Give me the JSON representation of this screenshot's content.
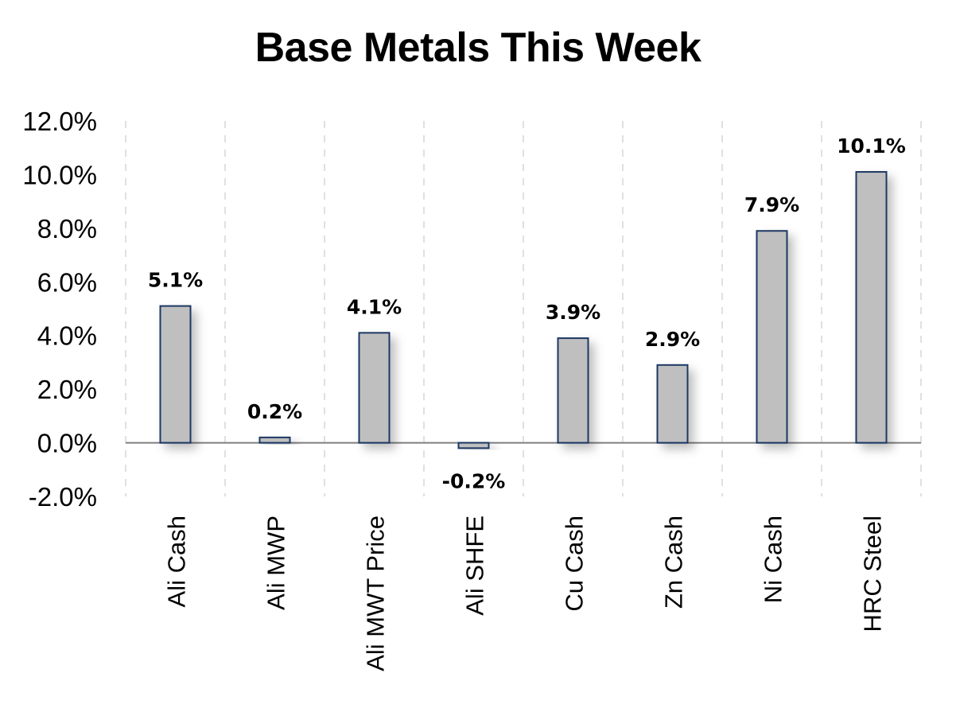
{
  "chart_data": {
    "type": "bar",
    "title": "Base Metals This Week",
    "categories": [
      "Ali Cash",
      "Ali MWP",
      "Ali MWT Price",
      "Ali SHFE",
      "Cu Cash",
      "Zn Cash",
      "Ni Cash",
      "HRC Steel"
    ],
    "values": [
      5.1,
      0.2,
      4.1,
      -0.2,
      3.9,
      2.9,
      7.9,
      10.1
    ],
    "data_labels": [
      "5.1%",
      "0.2%",
      "4.1%",
      "-0.2%",
      "3.9%",
      "2.9%",
      "7.9%",
      "10.1%"
    ],
    "yticks": [
      12,
      10,
      8,
      6,
      4,
      2,
      0,
      -2
    ],
    "ytick_labels": [
      "12.0%",
      "10.0%",
      "8.0%",
      "6.0%",
      "4.0%",
      "2.0%",
      "0.0%",
      "-2.0%"
    ],
    "ylim": [
      -2,
      12
    ],
    "xlabel": "",
    "ylabel": "",
    "grid": "vertical dashed",
    "legend": "none",
    "colors": {
      "bar_fill": "#BFBFBF",
      "bar_stroke": "#1F3864",
      "axis": "#808080",
      "grid": "#E0E0E0"
    }
  }
}
